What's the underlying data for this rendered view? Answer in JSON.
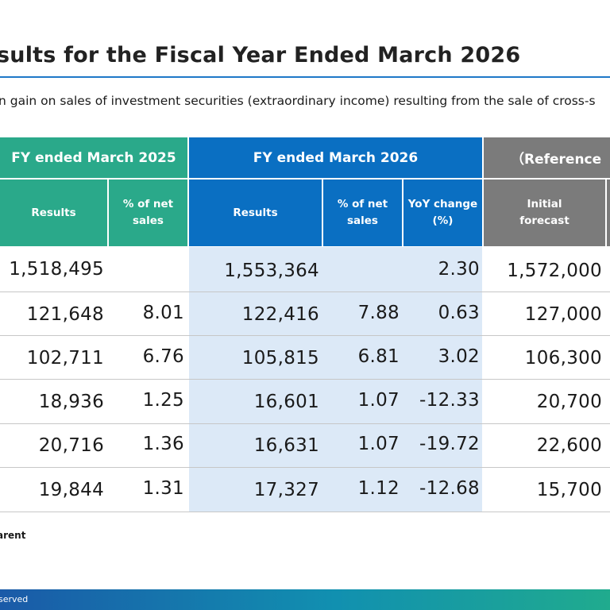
{
  "title": "sults for the Fiscal Year Ended March 2026",
  "subtitle": "n gain on sales of investment securities (extraordinary income) resulting from the sale of cross-s",
  "table": {
    "group_headers": {
      "fy2025": "FY ended March 2025",
      "fy2026": "FY ended March 2026",
      "reference": "（Reference"
    },
    "sub_headers": {
      "fy2025_results": "Results",
      "fy2025_pct": "% of net\nsales",
      "fy2026_results": "Results",
      "fy2026_pct": "% of net\nsales",
      "fy2026_yoy": "YoY change\n(%)",
      "ref_forecast": "Initial\nforecast"
    },
    "rows": [
      {
        "r2025": "1,518,495",
        "p2025": "",
        "r2026": "1,553,364",
        "p2026": "",
        "yoy": "2.30",
        "fc": "1,572,000"
      },
      {
        "r2025": "121,648",
        "p2025": "8.01",
        "r2026": "122,416",
        "p2026": "7.88",
        "yoy": "0.63",
        "fc": "127,000"
      },
      {
        "r2025": "102,711",
        "p2025": "6.76",
        "r2026": "105,815",
        "p2026": "6.81",
        "yoy": "3.02",
        "fc": "106,300"
      },
      {
        "r2025": "18,936",
        "p2025": "1.25",
        "r2026": "16,601",
        "p2026": "1.07",
        "yoy": "-12.33",
        "fc": "20,700"
      },
      {
        "r2025": "20,716",
        "p2025": "1.36",
        "r2026": "16,631",
        "p2026": "1.07",
        "yoy": "-19.72",
        "fc": "22,600"
      },
      {
        "r2025": "19,844",
        "p2025": "1.31",
        "r2026": "17,327",
        "p2026": "1.12",
        "yoy": "-12.68",
        "fc": "15,700"
      }
    ]
  },
  "note": "arent",
  "footer": "served",
  "colors": {
    "green_header": "#2aa98a",
    "blue_header": "#0a6fc2",
    "gray_header": "#7b7b7b",
    "highlight_column": "#dce9f7",
    "title_rule": "#1f78c8"
  }
}
